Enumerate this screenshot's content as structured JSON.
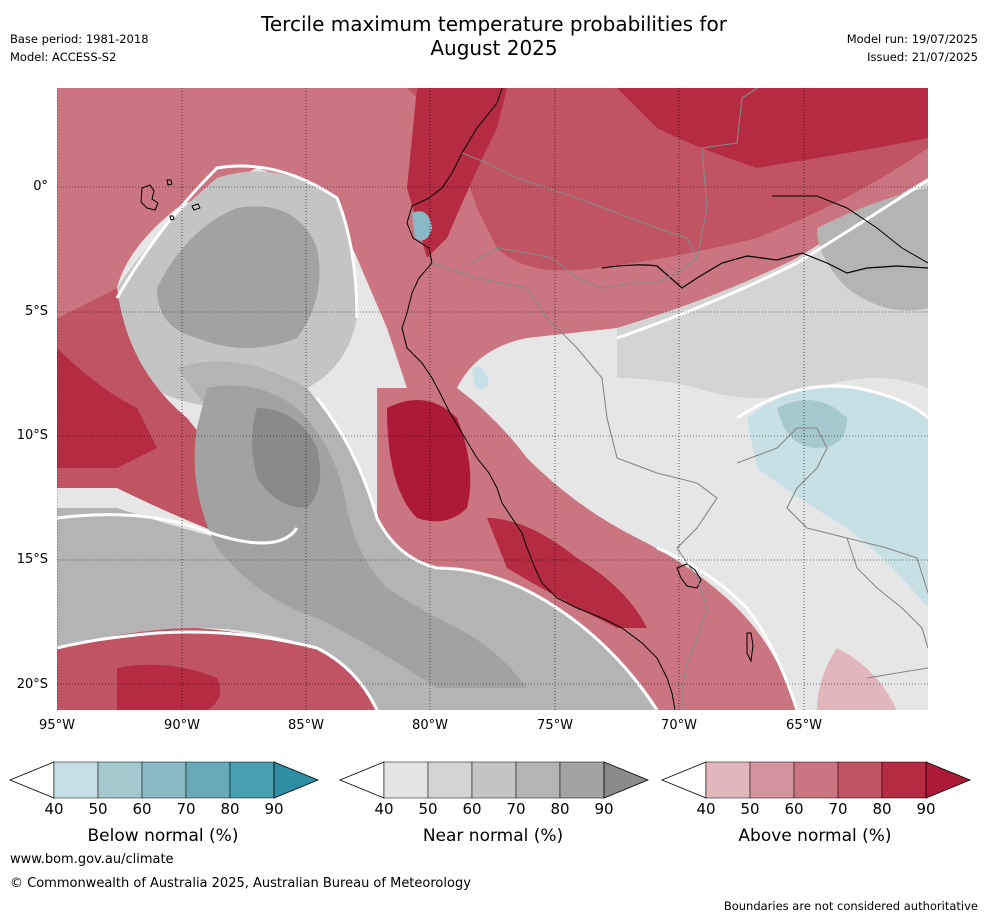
{
  "title_line1": "Tercile maximum temperature probabilities for",
  "title_line2": "August 2025",
  "meta": {
    "base_period": "Base period: 1981-2018",
    "model": "Model: ACCESS-S2",
    "model_run": "Model run: 19/07/2025",
    "issued": "Issued: 21/07/2025"
  },
  "axes": {
    "y_ticks": [
      "0°",
      "5°S",
      "10°S",
      "15°S",
      "20°S"
    ],
    "x_ticks": [
      "95°W",
      "90°W",
      "85°W",
      "80°W",
      "75°W",
      "70°W",
      "65°W"
    ]
  },
  "colorbars": [
    {
      "label": "Below normal (%)",
      "ticks": [
        "40",
        "50",
        "60",
        "70",
        "80",
        "90"
      ],
      "colors": [
        "#c6e0e6",
        "#a6c8cf",
        "#88b9c4",
        "#6aaab8",
        "#4aa0b0",
        "#2e8ea3"
      ]
    },
    {
      "label": "Near normal (%)",
      "ticks": [
        "40",
        "50",
        "60",
        "70",
        "80",
        "90"
      ],
      "colors": [
        "#e4e4e4",
        "#d4d4d4",
        "#c4c4c4",
        "#b4b4b4",
        "#a2a2a2",
        "#8a8a8a"
      ]
    },
    {
      "label": "Above normal (%)",
      "ticks": [
        "40",
        "50",
        "60",
        "70",
        "80",
        "90"
      ],
      "colors": [
        "#e1b7bd",
        "#d4949d",
        "#ca7580",
        "#c05462",
        "#b42b42",
        "#ad1a37"
      ]
    }
  ],
  "footer": {
    "url": "www.bom.gov.au/climate",
    "copyright": "© Commonwealth of Australia 2025, Australian Bureau of Meteorology",
    "disclaimer": "Boundaries are not considered authoritative"
  }
}
